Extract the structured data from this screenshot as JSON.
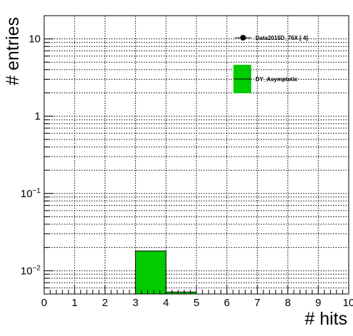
{
  "chart_data": {
    "type": "bar",
    "xlabel": "# hits",
    "ylabel": "# entries",
    "xlim": [
      0,
      10
    ],
    "ylim": [
      0.005,
      20
    ],
    "log_y": true,
    "grid": true,
    "x_ticks": [
      {
        "value": 0,
        "label": "0"
      },
      {
        "value": 1,
        "label": "1"
      },
      {
        "value": 2,
        "label": "2"
      },
      {
        "value": 3,
        "label": "3"
      },
      {
        "value": 4,
        "label": "4"
      },
      {
        "value": 5,
        "label": "5"
      },
      {
        "value": 6,
        "label": "6"
      },
      {
        "value": 7,
        "label": "7"
      },
      {
        "value": 8,
        "label": "8"
      },
      {
        "value": 9,
        "label": "9"
      },
      {
        "value": 10,
        "label": "10"
      }
    ],
    "y_ticks": [
      {
        "value": 10,
        "base": "10",
        "exp": ""
      },
      {
        "value": 1,
        "base": "1",
        "exp": ""
      },
      {
        "value": 0.1,
        "base": "10",
        "exp": "−1"
      },
      {
        "value": 0.01,
        "base": "10",
        "exp": "−2"
      }
    ],
    "bins": [
      {
        "x_low": 3,
        "x_high": 4,
        "value": 0.018
      },
      {
        "x_low": 4,
        "x_high": 5,
        "value": 0.0053
      }
    ],
    "fill_color": "#00cc00",
    "legend": {
      "placement": "top-right",
      "entries": [
        {
          "label": "Data2015D_76X [       4]",
          "marker": "point"
        },
        {
          "label": "DY_Asymptotic",
          "marker": "fill"
        }
      ]
    }
  }
}
